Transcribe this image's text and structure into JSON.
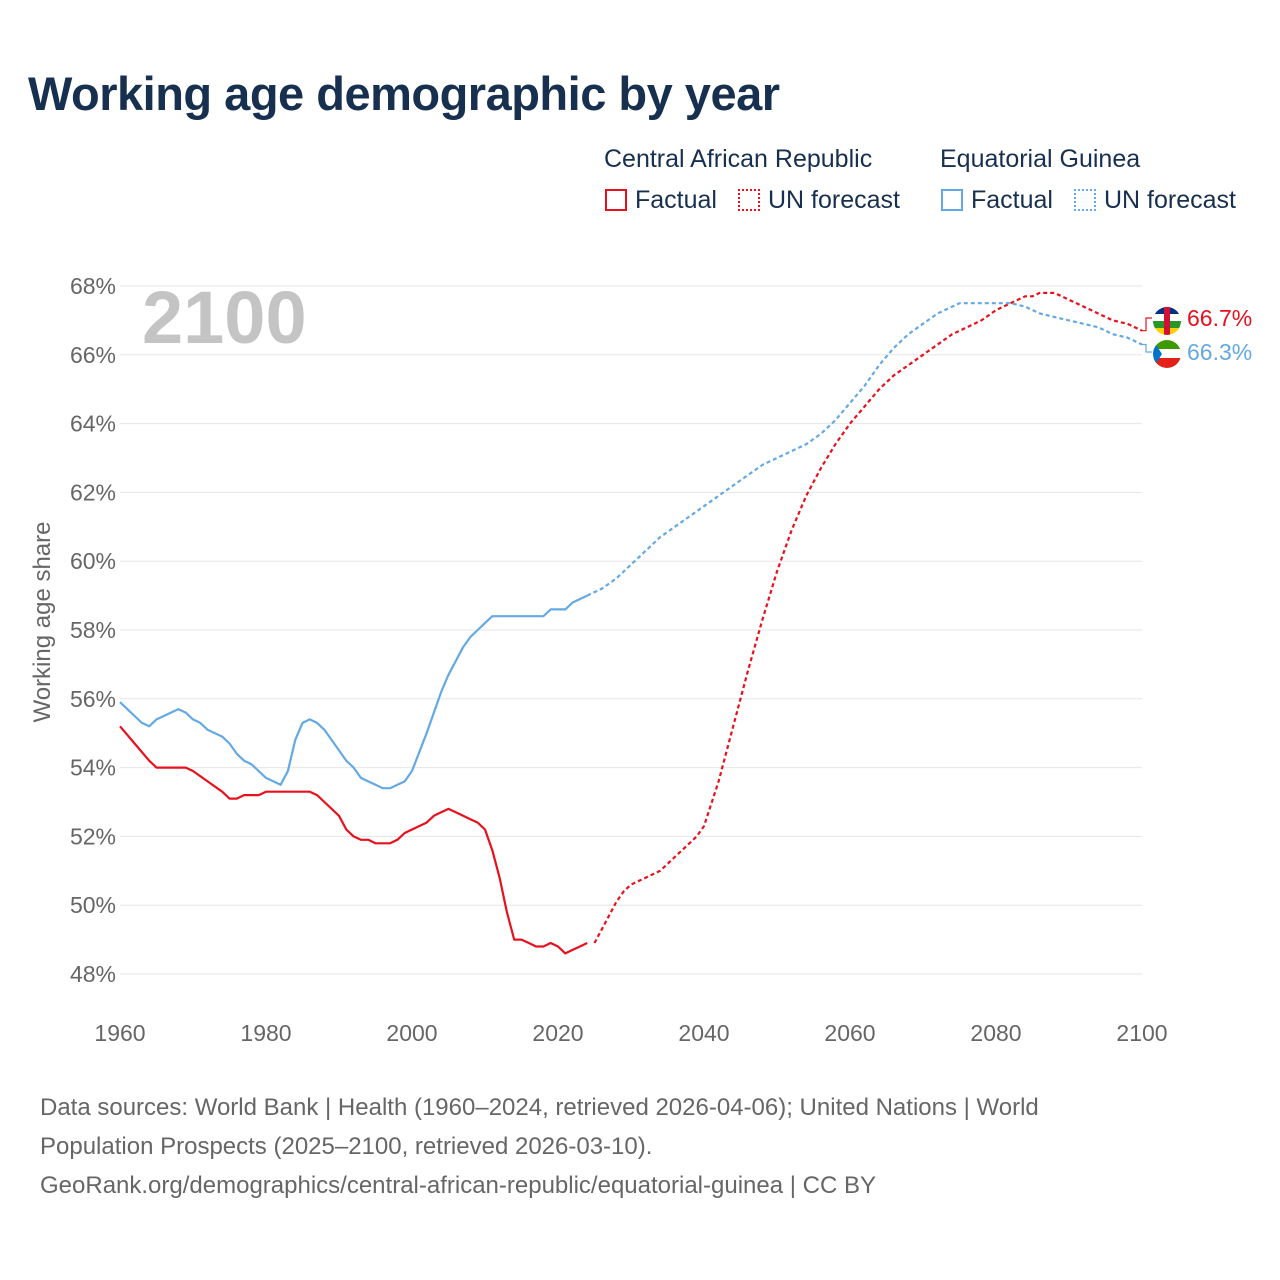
{
  "title": "Working age demographic by year",
  "legend": {
    "groups": [
      {
        "name": "Central African Republic",
        "items": [
          "Factual",
          "UN forecast"
        ],
        "color": "#e8101c"
      },
      {
        "name": "Equatorial Guinea",
        "items": [
          "Factual",
          "UN forecast"
        ],
        "color": "#64a9e3"
      }
    ]
  },
  "chart_data": {
    "type": "line",
    "title": "Working age demographic by year",
    "xlabel": "",
    "ylabel": "Working age share",
    "xlim": [
      1960,
      2100
    ],
    "ylim": [
      47.5,
      68.5
    ],
    "x_ticks": [
      1960,
      1980,
      2000,
      2020,
      2040,
      2060,
      2080,
      2100
    ],
    "y_ticks": [
      48,
      50,
      52,
      54,
      56,
      58,
      60,
      62,
      64,
      66,
      68
    ],
    "y_tick_labels": [
      "48%",
      "50%",
      "52%",
      "54%",
      "56%",
      "58%",
      "60%",
      "62%",
      "64%",
      "66%",
      "68%"
    ],
    "year_watermark": "2100",
    "grid": true,
    "series": [
      {
        "name": "Central African Republic",
        "color": "#e8101c",
        "end_label": "66.7%",
        "factual_x": [
          1960,
          1962,
          1964,
          1965,
          1966,
          1967,
          1968,
          1969,
          1970,
          1972,
          1974,
          1975,
          1976,
          1977,
          1978,
          1979,
          1980,
          1982,
          1984,
          1986,
          1987,
          1988,
          1990,
          1991,
          1992,
          1993,
          1994,
          1995,
          1996,
          1997,
          1998,
          1999,
          2000,
          2002,
          2003,
          2004,
          2005,
          2006,
          2007,
          2008,
          2009,
          2010,
          2011,
          2012,
          2013,
          2014,
          2015,
          2016,
          2017,
          2018,
          2019,
          2020,
          2021,
          2022,
          2023,
          2024
        ],
        "factual_y": [
          55.2,
          54.7,
          54.2,
          54.0,
          54.0,
          54.0,
          54.0,
          54.0,
          53.9,
          53.6,
          53.3,
          53.1,
          53.1,
          53.2,
          53.2,
          53.2,
          53.3,
          53.3,
          53.3,
          53.3,
          53.2,
          53.0,
          52.6,
          52.2,
          52.0,
          51.9,
          51.9,
          51.8,
          51.8,
          51.8,
          51.9,
          52.1,
          52.2,
          52.4,
          52.6,
          52.7,
          52.8,
          52.7,
          52.6,
          52.5,
          52.4,
          52.2,
          51.6,
          50.8,
          49.8,
          49.0,
          49.0,
          48.9,
          48.8,
          48.8,
          48.9,
          48.8,
          48.6,
          48.7,
          48.8,
          48.9
        ],
        "forecast_x": [
          2025,
          2026,
          2027,
          2028,
          2029,
          2030,
          2031,
          2032,
          2033,
          2034,
          2035,
          2036,
          2037,
          2038,
          2039,
          2040,
          2042,
          2044,
          2046,
          2048,
          2050,
          2052,
          2054,
          2056,
          2058,
          2060,
          2062,
          2064,
          2066,
          2068,
          2070,
          2072,
          2074,
          2076,
          2078,
          2080,
          2082,
          2084,
          2085,
          2086,
          2087,
          2088,
          2089,
          2090,
          2092,
          2094,
          2096,
          2098,
          2100
        ],
        "forecast_y": [
          48.9,
          49.3,
          49.7,
          50.1,
          50.4,
          50.6,
          50.7,
          50.8,
          50.9,
          51.0,
          51.2,
          51.4,
          51.6,
          51.8,
          52.0,
          52.3,
          53.6,
          55.2,
          56.8,
          58.3,
          59.7,
          60.9,
          61.9,
          62.7,
          63.4,
          64.0,
          64.5,
          65.0,
          65.4,
          65.7,
          66.0,
          66.3,
          66.6,
          66.8,
          67.0,
          67.3,
          67.5,
          67.7,
          67.7,
          67.8,
          67.8,
          67.8,
          67.7,
          67.6,
          67.4,
          67.2,
          67.0,
          66.9,
          66.7
        ]
      },
      {
        "name": "Equatorial Guinea",
        "color": "#64a9e3",
        "end_label": "66.3%",
        "factual_x": [
          1960,
          1961,
          1962,
          1963,
          1964,
          1965,
          1966,
          1968,
          1969,
          1970,
          1971,
          1972,
          1974,
          1975,
          1976,
          1977,
          1978,
          1980,
          1982,
          1983,
          1984,
          1985,
          1986,
          1987,
          1988,
          1990,
          1991,
          1992,
          1993,
          1994,
          1995,
          1996,
          1997,
          1998,
          1999,
          2000,
          2002,
          2004,
          2005,
          2006,
          2007,
          2008,
          2009,
          2010,
          2011,
          2012,
          2014,
          2016,
          2018,
          2019,
          2020,
          2021,
          2022,
          2024
        ],
        "factual_y": [
          55.9,
          55.7,
          55.5,
          55.3,
          55.2,
          55.4,
          55.5,
          55.7,
          55.6,
          55.4,
          55.3,
          55.1,
          54.9,
          54.7,
          54.4,
          54.2,
          54.1,
          53.7,
          53.5,
          53.9,
          54.8,
          55.3,
          55.4,
          55.3,
          55.1,
          54.5,
          54.2,
          54.0,
          53.7,
          53.6,
          53.5,
          53.4,
          53.4,
          53.5,
          53.6,
          53.9,
          55.0,
          56.2,
          56.7,
          57.1,
          57.5,
          57.8,
          58.0,
          58.2,
          58.4,
          58.4,
          58.4,
          58.4,
          58.4,
          58.6,
          58.6,
          58.6,
          58.8,
          59.0
        ],
        "forecast_x": [
          2024,
          2026,
          2028,
          2030,
          2032,
          2034,
          2036,
          2038,
          2040,
          2042,
          2044,
          2046,
          2048,
          2050,
          2052,
          2054,
          2056,
          2058,
          2060,
          2062,
          2064,
          2066,
          2068,
          2070,
          2072,
          2074,
          2075,
          2076,
          2078,
          2080,
          2082,
          2084,
          2086,
          2088,
          2090,
          2092,
          2094,
          2096,
          2098,
          2100
        ],
        "forecast_y": [
          59.0,
          59.2,
          59.5,
          59.9,
          60.3,
          60.7,
          61.0,
          61.3,
          61.6,
          61.9,
          62.2,
          62.5,
          62.8,
          63.0,
          63.2,
          63.4,
          63.7,
          64.1,
          64.6,
          65.1,
          65.7,
          66.2,
          66.6,
          66.9,
          67.2,
          67.4,
          67.5,
          67.5,
          67.5,
          67.5,
          67.5,
          67.4,
          67.2,
          67.1,
          67.0,
          66.9,
          66.8,
          66.6,
          66.5,
          66.3
        ]
      }
    ]
  },
  "footer": {
    "line1": "Data sources: World Bank | Health (1960–2024, retrieved 2026-04-06); United Nations | World",
    "line2": "Population Prospects (2025–2100, retrieved 2026-03-10).",
    "line3": "GeoRank.org/demographics/central-african-republic/equatorial-guinea | CC BY"
  }
}
